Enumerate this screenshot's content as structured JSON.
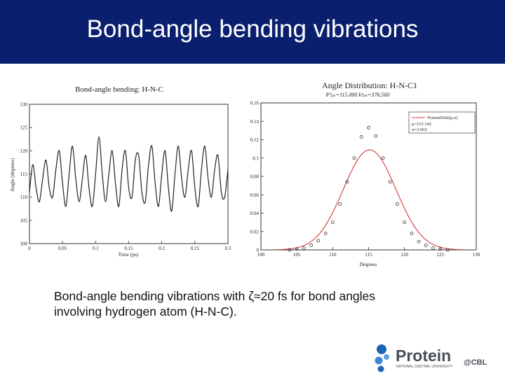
{
  "slide": {
    "title": "Bond-angle bending vibrations",
    "caption_line1": "Bond-angle bending vibrations with ζ≈20 fs for bond angles",
    "caption_line2": "involving hydrogen atom (H-N-C).",
    "header_color": "#0a1f6e"
  },
  "logo": {
    "name": "Protein",
    "suffix": "@CBL",
    "subtitle": "NATIONAL CENTRAL UNIVERSITY",
    "colors": {
      "blue": "#1f64b4",
      "text": "#4a4f57"
    }
  },
  "chart_data": [
    {
      "type": "line",
      "title": "Bond-angle bending: H-N-C",
      "xlabel": "Time (ps)",
      "ylabel": "Angle (degrees)",
      "xlim": [
        0,
        0.3
      ],
      "ylim": [
        100,
        130
      ],
      "xticks": [
        "0",
        "0.05",
        "0.1",
        "0.15",
        "0.2",
        "0.25",
        "0.3"
      ],
      "yticks": [
        "100",
        "105",
        "110",
        "115",
        "120",
        "125",
        "130"
      ],
      "series": [
        {
          "x": [
            0,
            0.005,
            0.01,
            0.015,
            0.02,
            0.025,
            0.03,
            0.035,
            0.04,
            0.045,
            0.05,
            0.055,
            0.06,
            0.065,
            0.07,
            0.075,
            0.08,
            0.085,
            0.09,
            0.095,
            0.1,
            0.105,
            0.11,
            0.115,
            0.12,
            0.125,
            0.13,
            0.135,
            0.14,
            0.145,
            0.15,
            0.155,
            0.16,
            0.165,
            0.17,
            0.175,
            0.18,
            0.185,
            0.19,
            0.195,
            0.2,
            0.205,
            0.21,
            0.215,
            0.22,
            0.225,
            0.23,
            0.235,
            0.24,
            0.245,
            0.25,
            0.255,
            0.26,
            0.265,
            0.27,
            0.275,
            0.28,
            0.285,
            0.29,
            0.295,
            0.3
          ],
          "y": [
            111,
            117,
            112,
            109,
            114,
            118,
            112,
            110,
            116,
            120,
            113,
            108,
            115,
            121,
            114,
            109,
            114,
            119,
            112,
            108,
            115,
            123,
            115,
            109,
            115,
            120,
            113,
            108,
            116,
            120,
            112,
            110,
            118,
            119,
            111,
            109,
            117,
            121,
            113,
            108,
            115,
            120,
            112,
            107,
            115,
            121,
            114,
            110,
            116,
            120,
            112,
            108,
            116,
            121,
            114,
            110,
            116,
            119,
            111,
            110,
            116
          ]
        }
      ]
    },
    {
      "type": "scatter",
      "title": "Angle Distribution: H-N-C1",
      "subtitle": "θ⁰ₚₖ=115.000  kᶿₚₖ=376.560",
      "xlabel": "Degrees",
      "ylabel": "",
      "xlim": [
        100,
        130
      ],
      "ylim": [
        0,
        0.16
      ],
      "xticks": [
        "100",
        "105",
        "110",
        "115",
        "120",
        "125",
        "130"
      ],
      "yticks": [
        "0",
        "0.02",
        "0.04",
        "0.06",
        "0.08",
        "0.1",
        "0.12",
        "0.14",
        "0.16"
      ],
      "legend": {
        "placement": "top-right",
        "entries": [
          "NormalDist(μ,σ)",
          "μ=115.145",
          "σ=3.665"
        ]
      },
      "fit": {
        "mu": 115.145,
        "sigma": 3.665
      },
      "series": [
        {
          "x": [
            104,
            105,
            106,
            107,
            108,
            109,
            110,
            111,
            112,
            113,
            114,
            115,
            116,
            117,
            118,
            119,
            120,
            121,
            122,
            123,
            124,
            125,
            126
          ],
          "y": [
            0,
            0.001,
            0.002,
            0.005,
            0.01,
            0.018,
            0.03,
            0.05,
            0.074,
            0.1,
            0.123,
            0.133,
            0.124,
            0.1,
            0.074,
            0.05,
            0.03,
            0.018,
            0.009,
            0.005,
            0.002,
            0.001,
            0
          ]
        }
      ]
    }
  ]
}
